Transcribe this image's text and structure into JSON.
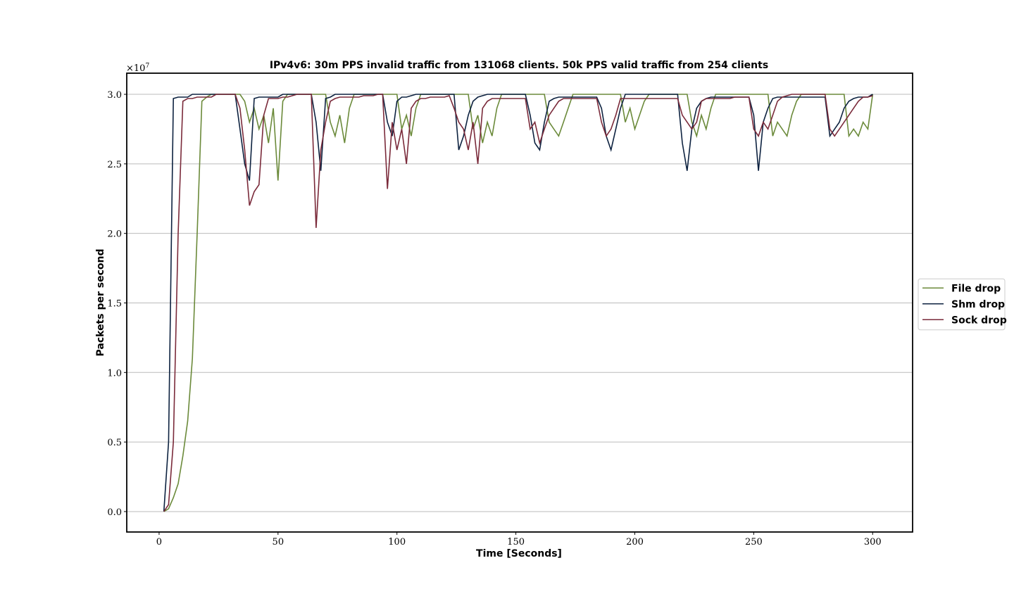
{
  "chart_data": {
    "type": "line",
    "title": "IPv4v6: 30m PPS invalid traffic from 131068 clients. 50k PPS valid traffic from 254 clients",
    "xlabel": "Time [Seconds]",
    "ylabel": "Packets per second",
    "y_offset": {
      "base": "×10",
      "exponent": "7"
    },
    "x": [
      2,
      4,
      6,
      8,
      10,
      12,
      14,
      16,
      18,
      20,
      22,
      24,
      26,
      28,
      30,
      32,
      34,
      36,
      38,
      40,
      42,
      44,
      46,
      48,
      50,
      52,
      54,
      56,
      58,
      60,
      62,
      64,
      66,
      68,
      70,
      72,
      74,
      76,
      78,
      80,
      82,
      84,
      86,
      88,
      90,
      92,
      94,
      96,
      98,
      100,
      102,
      104,
      106,
      108,
      110,
      112,
      114,
      116,
      118,
      120,
      122,
      124,
      126,
      128,
      130,
      132,
      134,
      136,
      138,
      140,
      142,
      144,
      146,
      148,
      150,
      152,
      154,
      156,
      158,
      160,
      162,
      164,
      166,
      168,
      170,
      172,
      174,
      176,
      178,
      180,
      182,
      184,
      186,
      188,
      190,
      192,
      194,
      196,
      198,
      200,
      202,
      204,
      206,
      208,
      210,
      212,
      214,
      216,
      218,
      220,
      222,
      224,
      226,
      228,
      230,
      232,
      234,
      236,
      238,
      240,
      242,
      244,
      246,
      248,
      250,
      252,
      254,
      256,
      258,
      260,
      262,
      264,
      266,
      268,
      270,
      272,
      274,
      276,
      278,
      280,
      282,
      284,
      286,
      288,
      290,
      292,
      294,
      296,
      298,
      300
    ],
    "series": [
      {
        "name": "File drop",
        "color": "#6b8a3a",
        "values": [
          0,
          0.02,
          0.1,
          0.2,
          0.4,
          0.65,
          1.1,
          2.0,
          2.95,
          2.98,
          3,
          3,
          3,
          3,
          3,
          3,
          3,
          2.95,
          2.8,
          2.9,
          2.75,
          2.85,
          2.65,
          2.9,
          2.38,
          2.95,
          3,
          3,
          3,
          3,
          3,
          3,
          3,
          3,
          3,
          2.8,
          2.7,
          2.85,
          2.65,
          2.9,
          3,
          3,
          3,
          3,
          3,
          3,
          3,
          3,
          3,
          3,
          2.75,
          2.85,
          2.7,
          2.9,
          3,
          3,
          3,
          3,
          3,
          3,
          3,
          3,
          3,
          3,
          3,
          2.75,
          2.85,
          2.65,
          2.8,
          2.7,
          2.9,
          3,
          3,
          3,
          3,
          3,
          3,
          3,
          3,
          3,
          3,
          2.8,
          2.75,
          2.7,
          2.8,
          2.9,
          3,
          3,
          3,
          3,
          3,
          3,
          3,
          3,
          3,
          3,
          3,
          2.8,
          2.9,
          2.75,
          2.85,
          2.95,
          3,
          3,
          3,
          3,
          3,
          3,
          3,
          3,
          3,
          2.8,
          2.7,
          2.85,
          2.75,
          2.9,
          3,
          3,
          3,
          3,
          3,
          3,
          3,
          3,
          3,
          3,
          3,
          3,
          2.7,
          2.8,
          2.75,
          2.7,
          2.85,
          2.95,
          3,
          3,
          3,
          3,
          3,
          3,
          3,
          3,
          3,
          3,
          2.7,
          2.75,
          2.7,
          2.8,
          2.75,
          3.0
        ]
      },
      {
        "name": "Shm drop",
        "color": "#0d2240",
        "values": [
          0,
          0.5,
          2.97,
          2.98,
          2.98,
          2.98,
          3,
          3,
          3,
          3,
          3,
          3,
          3,
          3,
          3,
          3,
          2.75,
          2.5,
          2.38,
          2.97,
          2.98,
          2.98,
          2.98,
          2.98,
          2.98,
          3,
          3,
          3,
          3,
          3,
          3,
          3,
          2.8,
          2.45,
          2.97,
          2.98,
          3,
          3,
          3,
          3,
          3,
          3,
          3,
          3,
          3,
          3,
          3,
          2.8,
          2.7,
          2.95,
          2.98,
          2.98,
          2.99,
          3,
          3,
          3,
          3,
          3,
          3,
          3,
          3,
          3,
          2.6,
          2.7,
          2.85,
          2.95,
          2.98,
          2.99,
          3,
          3,
          3,
          3,
          3,
          3,
          3,
          3,
          3,
          2.85,
          2.65,
          2.6,
          2.8,
          2.95,
          2.97,
          2.98,
          2.98,
          2.98,
          2.98,
          2.98,
          2.98,
          2.98,
          2.98,
          2.98,
          2.9,
          2.7,
          2.6,
          2.75,
          2.9,
          3,
          3,
          3,
          3,
          3,
          3,
          3,
          3,
          3,
          3,
          3,
          3,
          2.65,
          2.45,
          2.75,
          2.9,
          2.95,
          2.97,
          2.98,
          2.98,
          2.98,
          2.98,
          2.98,
          2.98,
          2.98,
          2.98,
          2.98,
          2.85,
          2.45,
          2.8,
          2.9,
          2.97,
          2.98,
          2.98,
          2.98,
          2.98,
          2.98,
          2.98,
          2.98,
          2.98,
          2.98,
          2.98,
          2.98,
          2.7,
          2.75,
          2.8,
          2.9,
          2.95,
          2.97,
          2.98,
          2.98,
          2.98,
          3.0
        ]
      },
      {
        "name": "Sock drop",
        "color": "#7a2a3a",
        "values": [
          0,
          0.05,
          0.5,
          2.0,
          2.95,
          2.97,
          2.97,
          2.98,
          2.98,
          2.98,
          2.98,
          3,
          3,
          3,
          3,
          3,
          2.9,
          2.6,
          2.2,
          2.3,
          2.35,
          2.85,
          2.97,
          2.97,
          2.97,
          2.98,
          2.98,
          2.99,
          3,
          3,
          3,
          3,
          2.04,
          2.6,
          2.8,
          2.95,
          2.97,
          2.98,
          2.98,
          2.98,
          2.98,
          2.98,
          2.99,
          2.99,
          2.99,
          3,
          3,
          2.32,
          2.8,
          2.6,
          2.75,
          2.5,
          2.9,
          2.95,
          2.97,
          2.97,
          2.98,
          2.98,
          2.98,
          2.98,
          2.99,
          2.9,
          2.8,
          2.75,
          2.6,
          2.8,
          2.5,
          2.9,
          2.95,
          2.97,
          2.97,
          2.97,
          2.97,
          2.97,
          2.97,
          2.97,
          2.97,
          2.75,
          2.8,
          2.65,
          2.75,
          2.85,
          2.9,
          2.95,
          2.97,
          2.97,
          2.97,
          2.97,
          2.97,
          2.97,
          2.97,
          2.97,
          2.8,
          2.7,
          2.75,
          2.85,
          2.97,
          2.97,
          2.97,
          2.97,
          2.97,
          2.97,
          2.97,
          2.97,
          2.97,
          2.97,
          2.97,
          2.97,
          2.97,
          2.85,
          2.8,
          2.75,
          2.8,
          2.95,
          2.97,
          2.97,
          2.97,
          2.97,
          2.97,
          2.97,
          2.98,
          2.98,
          2.98,
          2.98,
          2.75,
          2.7,
          2.8,
          2.75,
          2.85,
          2.95,
          2.98,
          2.99,
          3,
          3,
          3,
          3,
          3,
          3,
          3,
          3,
          2.75,
          2.7,
          2.75,
          2.8,
          2.85,
          2.9,
          2.95,
          2.98,
          2.98,
          2.99
        ]
      }
    ],
    "xlim": [
      -13.6,
      316.8
    ],
    "ylim": [
      -0.147,
      3.152
    ],
    "xticks": [
      0,
      50,
      100,
      150,
      200,
      250,
      300
    ],
    "yticks": [
      {
        "value": 0,
        "label": "0.0"
      },
      0.5,
      {
        "value": 1,
        "label": "1.0"
      },
      1.5,
      {
        "value": 2,
        "label": "2.0"
      },
      2.5,
      {
        "value": 3,
        "label": "3.0"
      }
    ],
    "grid": true,
    "legend": "center right"
  }
}
